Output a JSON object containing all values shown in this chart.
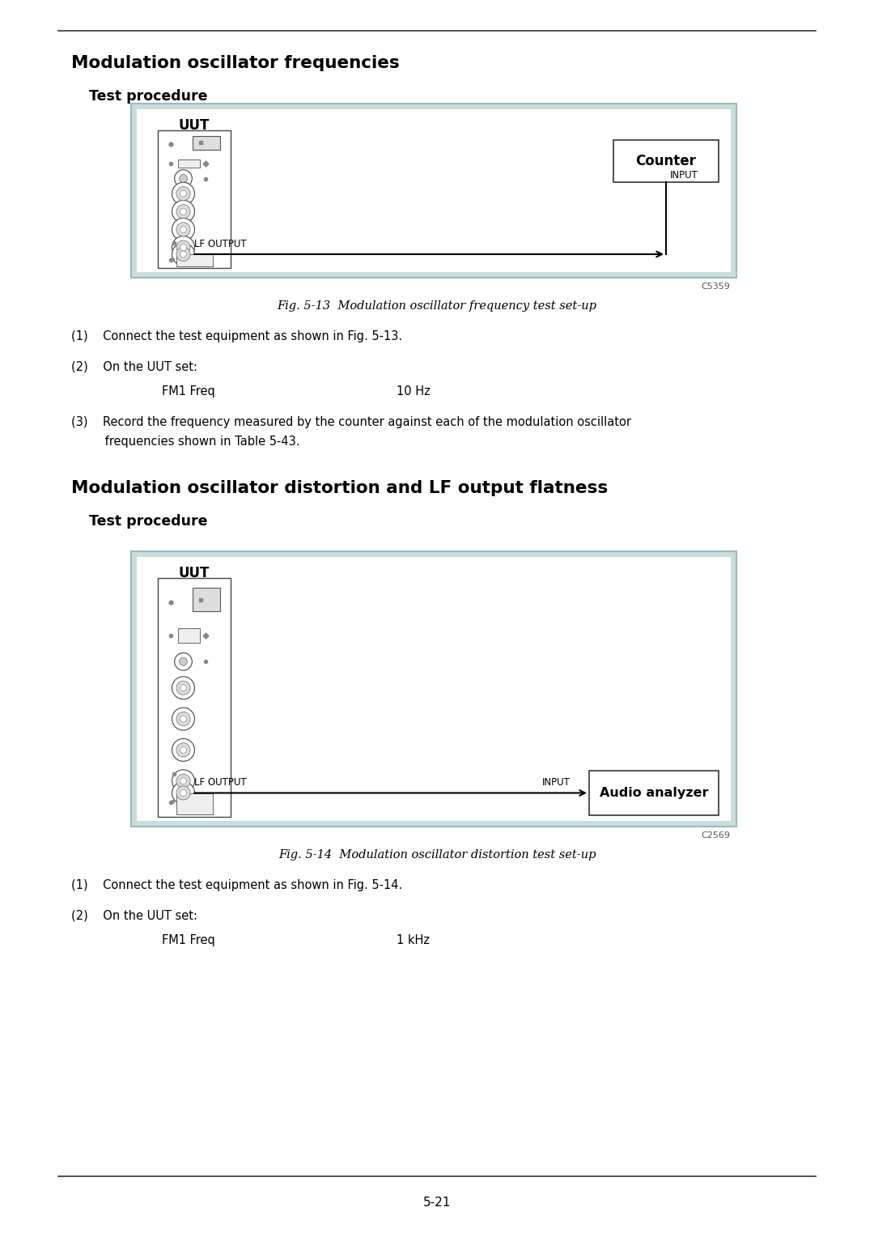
{
  "page_bg": "#ffffff",
  "page_num": "5-21",
  "section1_title": "Modulation oscillator frequencies",
  "section1_sub": "Test procedure",
  "fig1_label": "C5359",
  "fig1_caption": "Fig. 5-13  Modulation oscillator frequency test set-up",
  "fig1_box_bg": "#ccdcdc",
  "fig1_items": {
    "uut_label": "UUT",
    "counter_label": "Counter",
    "lf_output_label": "LF OUTPUT",
    "input_label": "INPUT"
  },
  "section1_steps": [
    "(1)    Connect the test equipment as shown in Fig. 5-13.",
    "(2)    On the UUT set:",
    "FM1 Freq",
    "10 Hz",
    "(3)    Record the frequency measured by the counter against each of the modulation oscillator",
    "         frequencies shown in Table 5-43."
  ],
  "section2_title": "Modulation oscillator distortion and LF output flatness",
  "section2_sub": "Test procedure",
  "fig2_label": "C2569",
  "fig2_caption": "Fig. 5-14  Modulation oscillator distortion test set-up",
  "fig2_box_bg": "#ccdcdc",
  "fig2_items": {
    "uut_label": "UUT",
    "analyzer_label": "Audio analyzer",
    "lf_output_label": "LF OUTPUT",
    "input_label": "INPUT"
  },
  "section2_steps": [
    "(1)    Connect the test equipment as shown in Fig. 5-14.",
    "(2)    On the UUT set:",
    "FM1 Freq",
    "1 kHz"
  ]
}
